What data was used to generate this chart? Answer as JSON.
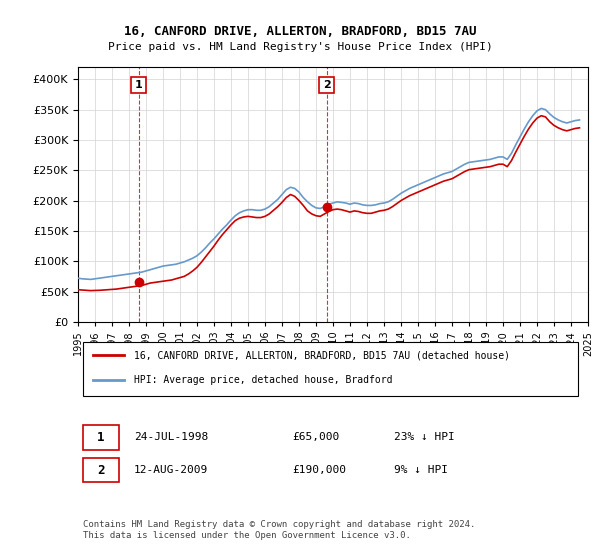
{
  "title": "16, CANFORD DRIVE, ALLERTON, BRADFORD, BD15 7AU",
  "subtitle": "Price paid vs. HM Land Registry's House Price Index (HPI)",
  "ylim": [
    0,
    420000
  ],
  "yticks": [
    0,
    50000,
    100000,
    150000,
    200000,
    250000,
    300000,
    350000,
    400000
  ],
  "sale1_date": 1998.56,
  "sale1_price": 65000,
  "sale1_label": "1",
  "sale1_info": "24-JUL-1998    £65,000    23% ↓ HPI",
  "sale2_date": 2009.62,
  "sale2_price": 190000,
  "sale2_label": "2",
  "sale2_info": "12-AUG-2009    £190,000    9% ↓ HPI",
  "legend_red": "16, CANFORD DRIVE, ALLERTON, BRADFORD, BD15 7AU (detached house)",
  "legend_blue": "HPI: Average price, detached house, Bradford",
  "footnote": "Contains HM Land Registry data © Crown copyright and database right 2024.\nThis data is licensed under the Open Government Licence v3.0.",
  "red_color": "#cc0000",
  "blue_color": "#6699cc",
  "dashed_red": "#cc0000",
  "hpi_data": {
    "years": [
      1995.0,
      1995.25,
      1995.5,
      1995.75,
      1996.0,
      1996.25,
      1996.5,
      1996.75,
      1997.0,
      1997.25,
      1997.5,
      1997.75,
      1998.0,
      1998.25,
      1998.5,
      1998.75,
      1999.0,
      1999.25,
      1999.5,
      1999.75,
      2000.0,
      2000.25,
      2000.5,
      2000.75,
      2001.0,
      2001.25,
      2001.5,
      2001.75,
      2002.0,
      2002.25,
      2002.5,
      2002.75,
      2003.0,
      2003.25,
      2003.5,
      2003.75,
      2004.0,
      2004.25,
      2004.5,
      2004.75,
      2005.0,
      2005.25,
      2005.5,
      2005.75,
      2006.0,
      2006.25,
      2006.5,
      2006.75,
      2007.0,
      2007.25,
      2007.5,
      2007.75,
      2008.0,
      2008.25,
      2008.5,
      2008.75,
      2009.0,
      2009.25,
      2009.5,
      2009.75,
      2010.0,
      2010.25,
      2010.5,
      2010.75,
      2011.0,
      2011.25,
      2011.5,
      2011.75,
      2012.0,
      2012.25,
      2012.5,
      2012.75,
      2013.0,
      2013.25,
      2013.5,
      2013.75,
      2014.0,
      2014.25,
      2014.5,
      2014.75,
      2015.0,
      2015.25,
      2015.5,
      2015.75,
      2016.0,
      2016.25,
      2016.5,
      2016.75,
      2017.0,
      2017.25,
      2017.5,
      2017.75,
      2018.0,
      2018.25,
      2018.5,
      2018.75,
      2019.0,
      2019.25,
      2019.5,
      2019.75,
      2020.0,
      2020.25,
      2020.5,
      2020.75,
      2021.0,
      2021.25,
      2021.5,
      2021.75,
      2022.0,
      2022.25,
      2022.5,
      2022.75,
      2023.0,
      2023.25,
      2023.5,
      2023.75,
      2024.0,
      2024.25,
      2024.5
    ],
    "values": [
      72000,
      71000,
      70500,
      70000,
      71000,
      72000,
      73000,
      74000,
      75000,
      76000,
      77000,
      78000,
      79000,
      80000,
      81000,
      82000,
      84000,
      86000,
      88000,
      90000,
      92000,
      93000,
      94000,
      95000,
      97000,
      99000,
      102000,
      105000,
      109000,
      115000,
      122000,
      130000,
      137000,
      145000,
      153000,
      160000,
      168000,
      175000,
      180000,
      183000,
      185000,
      185000,
      184000,
      184000,
      186000,
      190000,
      196000,
      202000,
      210000,
      218000,
      222000,
      220000,
      214000,
      205000,
      198000,
      192000,
      188000,
      187000,
      190000,
      194000,
      196000,
      198000,
      197000,
      196000,
      194000,
      196000,
      195000,
      193000,
      192000,
      192000,
      193000,
      195000,
      196000,
      198000,
      202000,
      207000,
      212000,
      216000,
      220000,
      223000,
      226000,
      229000,
      232000,
      235000,
      238000,
      241000,
      244000,
      246000,
      248000,
      252000,
      256000,
      260000,
      263000,
      264000,
      265000,
      266000,
      267000,
      268000,
      270000,
      272000,
      272000,
      268000,
      278000,
      292000,
      305000,
      318000,
      330000,
      340000,
      348000,
      352000,
      350000,
      343000,
      337000,
      333000,
      330000,
      328000,
      330000,
      332000,
      333000
    ]
  },
  "sale_line_data": {
    "years": [
      1995.0,
      1995.25,
      1995.5,
      1995.75,
      1996.0,
      1996.25,
      1996.5,
      1996.75,
      1997.0,
      1997.25,
      1997.5,
      1997.75,
      1998.0,
      1998.25,
      1998.5,
      1998.75,
      1999.0,
      1999.25,
      1999.5,
      1999.75,
      2000.0,
      2000.25,
      2000.5,
      2000.75,
      2001.0,
      2001.25,
      2001.5,
      2001.75,
      2002.0,
      2002.25,
      2002.5,
      2002.75,
      2003.0,
      2003.25,
      2003.5,
      2003.75,
      2004.0,
      2004.25,
      2004.5,
      2004.75,
      2005.0,
      2005.25,
      2005.5,
      2005.75,
      2006.0,
      2006.25,
      2006.5,
      2006.75,
      2007.0,
      2007.25,
      2007.5,
      2007.75,
      2008.0,
      2008.25,
      2008.5,
      2008.75,
      2009.0,
      2009.25,
      2009.5,
      2009.75,
      2010.0,
      2010.25,
      2010.5,
      2010.75,
      2011.0,
      2011.25,
      2011.5,
      2011.75,
      2012.0,
      2012.25,
      2012.5,
      2012.75,
      2013.0,
      2013.25,
      2013.5,
      2013.75,
      2014.0,
      2014.25,
      2014.5,
      2014.75,
      2015.0,
      2015.25,
      2015.5,
      2015.75,
      2016.0,
      2016.25,
      2016.5,
      2016.75,
      2017.0,
      2017.25,
      2017.5,
      2017.75,
      2018.0,
      2018.25,
      2018.5,
      2018.75,
      2019.0,
      2019.25,
      2019.5,
      2019.75,
      2020.0,
      2020.25,
      2020.5,
      2020.75,
      2021.0,
      2021.25,
      2021.5,
      2021.75,
      2022.0,
      2022.25,
      2022.5,
      2022.75,
      2023.0,
      2023.25,
      2023.5,
      2023.75,
      2024.0,
      2024.25,
      2024.5
    ],
    "values": [
      53000,
      52500,
      52000,
      51500,
      51800,
      52000,
      52500,
      53000,
      53500,
      54000,
      55000,
      56000,
      57000,
      58000,
      59000,
      60000,
      62000,
      64000,
      65000,
      66000,
      67000,
      68000,
      69000,
      71000,
      73000,
      75000,
      79000,
      84000,
      90000,
      98000,
      107000,
      116000,
      125000,
      135000,
      144000,
      152000,
      160000,
      167000,
      171000,
      173000,
      174000,
      173000,
      172000,
      172000,
      174000,
      178000,
      184000,
      190000,
      197000,
      205000,
      210000,
      207000,
      200000,
      192000,
      183000,
      178000,
      175000,
      174000,
      178000,
      182000,
      185000,
      186000,
      185000,
      183000,
      181000,
      183000,
      182000,
      180000,
      179000,
      179000,
      181000,
      183000,
      184000,
      186000,
      190000,
      195000,
      200000,
      204000,
      208000,
      211000,
      214000,
      217000,
      220000,
      223000,
      226000,
      229000,
      232000,
      234000,
      236000,
      240000,
      244000,
      248000,
      251000,
      252000,
      253000,
      254000,
      255000,
      256000,
      258000,
      260000,
      260000,
      256000,
      266000,
      280000,
      293000,
      306000,
      318000,
      328000,
      336000,
      340000,
      338000,
      330000,
      324000,
      320000,
      317000,
      315000,
      317000,
      319000,
      320000
    ]
  },
  "xmin": 1995,
  "xmax": 2025,
  "xtick_years": [
    1995,
    1996,
    1997,
    1998,
    1999,
    2000,
    2001,
    2002,
    2003,
    2004,
    2005,
    2006,
    2007,
    2008,
    2009,
    2010,
    2011,
    2012,
    2013,
    2014,
    2015,
    2016,
    2017,
    2018,
    2019,
    2020,
    2021,
    2022,
    2023,
    2024,
    2025
  ]
}
